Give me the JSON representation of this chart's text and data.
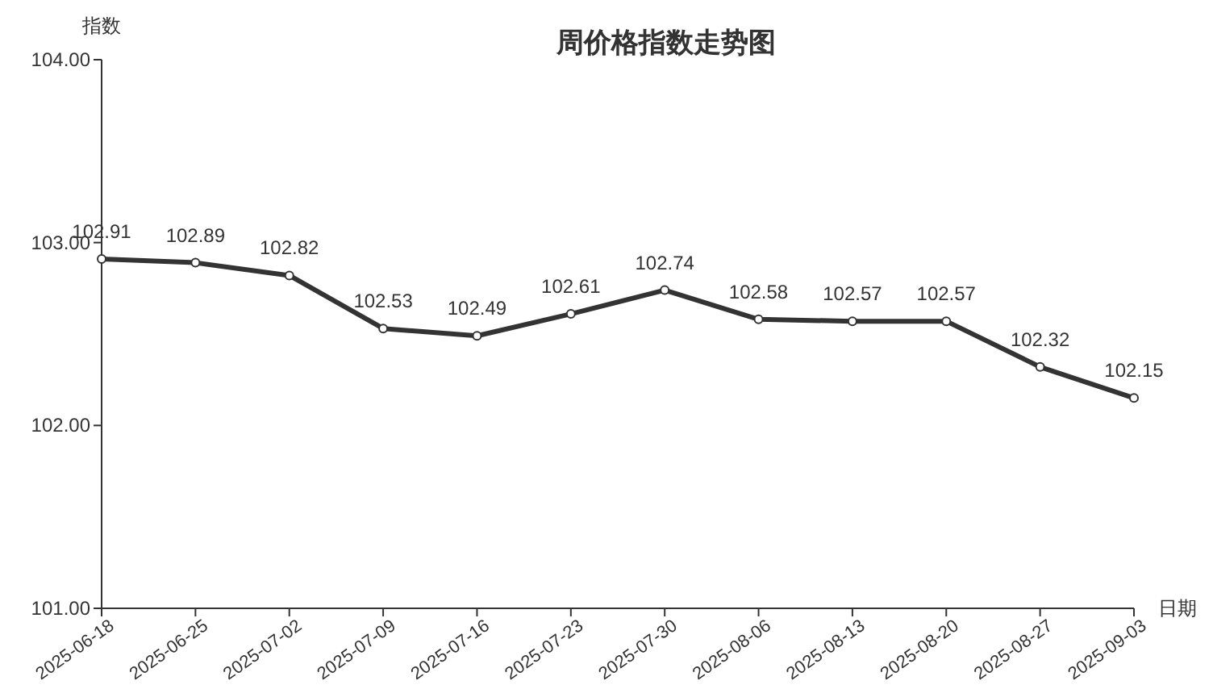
{
  "chart_data": {
    "type": "line",
    "title": "周价格指数走势图",
    "xlabel": "日期",
    "ylabel": "指数",
    "categories": [
      "2025-06-18",
      "2025-06-25",
      "2025-07-02",
      "2025-07-09",
      "2025-07-16",
      "2025-07-23",
      "2025-07-30",
      "2025-08-06",
      "2025-08-13",
      "2025-08-20",
      "2025-08-27",
      "2025-09-03"
    ],
    "series": [
      {
        "color": "#333333",
        "values": [
          102.91,
          102.89,
          102.82,
          102.53,
          102.49,
          102.61,
          102.74,
          102.58,
          102.57,
          102.57,
          102.32,
          102.15
        ]
      }
    ],
    "ylim": [
      101,
      104
    ],
    "yticks": [
      {
        "value": 101,
        "label": "101.00"
      },
      {
        "value": 102,
        "label": "102.00"
      },
      {
        "value": 103,
        "label": "103.00"
      },
      {
        "value": 104,
        "label": "104.00"
      }
    ],
    "data_labels": true,
    "marker": "circle",
    "line_style": "solid"
  }
}
